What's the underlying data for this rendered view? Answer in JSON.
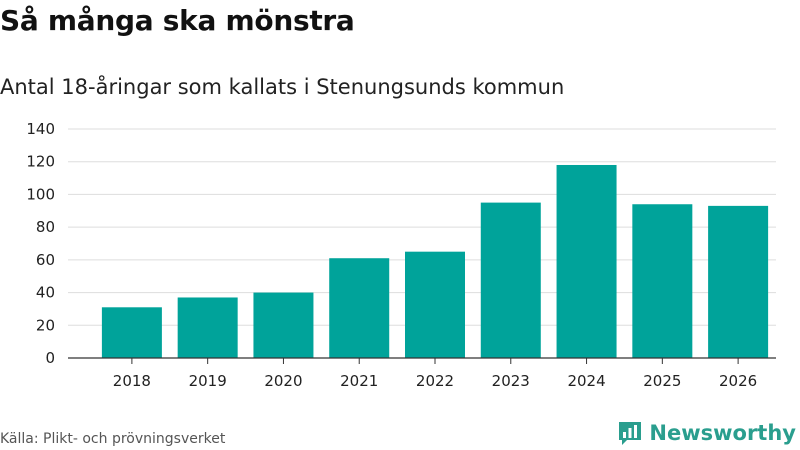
{
  "header": {
    "title": "Så många ska mönstra",
    "subtitle": "Antal 18-åringar som kallats i Stenungsunds kommun"
  },
  "footer": {
    "source": "Källa: Plikt- och prövningsverket",
    "brand": "Newsworthy",
    "brand_icon": "newsworthy-logo-icon"
  },
  "colors": {
    "bar": "#00a39a",
    "grid": "#dddddd",
    "axis": "#333333",
    "brand": "#2a9e8e"
  },
  "chart_data": {
    "type": "bar",
    "title": "Så många ska mönstra",
    "subtitle": "Antal 18-åringar som kallats i Stenungsunds kommun",
    "categories": [
      "2018",
      "2019",
      "2020",
      "2021",
      "2022",
      "2023",
      "2024",
      "2025",
      "2026"
    ],
    "values": [
      31,
      37,
      40,
      61,
      65,
      95,
      118,
      94,
      93
    ],
    "xlabel": "",
    "ylabel": "",
    "ylim": [
      0,
      140
    ],
    "yticks": [
      0,
      20,
      40,
      60,
      80,
      100,
      120,
      140
    ],
    "grid": true,
    "legend": "none"
  }
}
